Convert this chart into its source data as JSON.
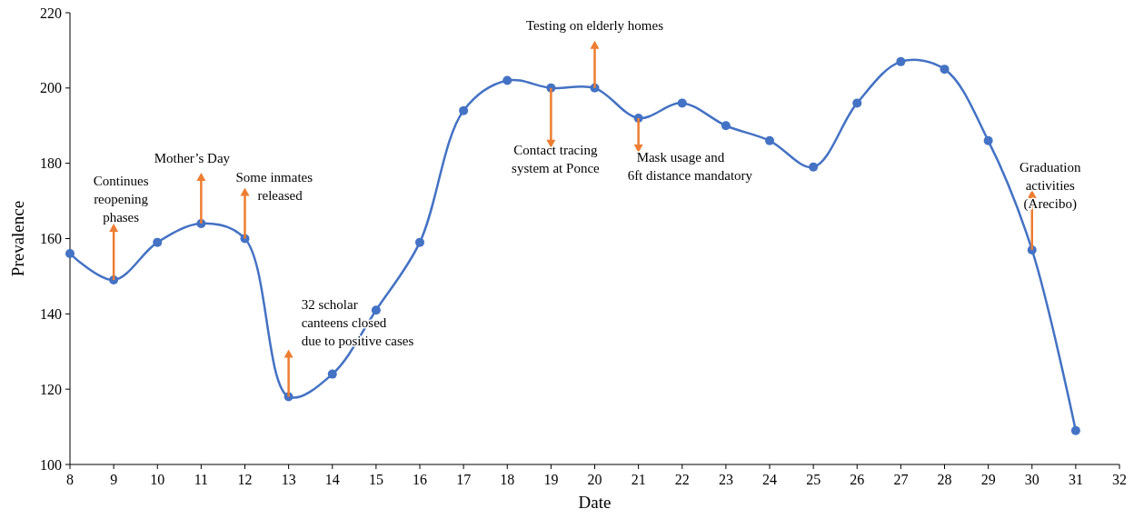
{
  "chart_data": {
    "type": "line",
    "xlabel": "Date",
    "ylabel": "Prevalence",
    "x": [
      8,
      9,
      10,
      11,
      12,
      13,
      14,
      15,
      16,
      17,
      18,
      19,
      20,
      21,
      22,
      23,
      24,
      25,
      26,
      27,
      28,
      29,
      30,
      31
    ],
    "series": [
      {
        "color": "#4472c4",
        "values": [
          156,
          149,
          159,
          164,
          160,
          118,
          124,
          141,
          159,
          194,
          202,
          200,
          200,
          192,
          196,
          190,
          186,
          179,
          196,
          207,
          205,
          186,
          157,
          109
        ]
      }
    ],
    "xlim": [
      8,
      32
    ],
    "xticks": [
      8,
      9,
      10,
      11,
      12,
      13,
      14,
      15,
      16,
      17,
      18,
      19,
      20,
      21,
      22,
      23,
      24,
      25,
      26,
      27,
      28,
      29,
      30,
      31,
      32
    ],
    "ylim": [
      100,
      220
    ],
    "yticks": [
      100,
      120,
      140,
      160,
      180,
      200,
      220
    ],
    "marker": "circle",
    "grid": false,
    "annotations": [
      {
        "text": "Continues reopening phases",
        "x": 9,
        "y": 149
      },
      {
        "text": "Mother’s Day",
        "x": 11,
        "y": 164
      },
      {
        "text": "Some inmates released",
        "x": 12,
        "y": 160
      },
      {
        "text": "32 scholar canteens closed due to positive cases",
        "x": 13,
        "y": 118
      },
      {
        "text": "Testing on elderly homes",
        "x": 20,
        "y": 200
      },
      {
        "text": "Contact tracing system at Ponce",
        "x": 19,
        "y": 200
      },
      {
        "text": "Mask usage and 6ft distance mandatory",
        "x": 21,
        "y": 192
      },
      {
        "text": "Graduation activities (Arecibo)",
        "x": 30,
        "y": 157
      }
    ]
  }
}
